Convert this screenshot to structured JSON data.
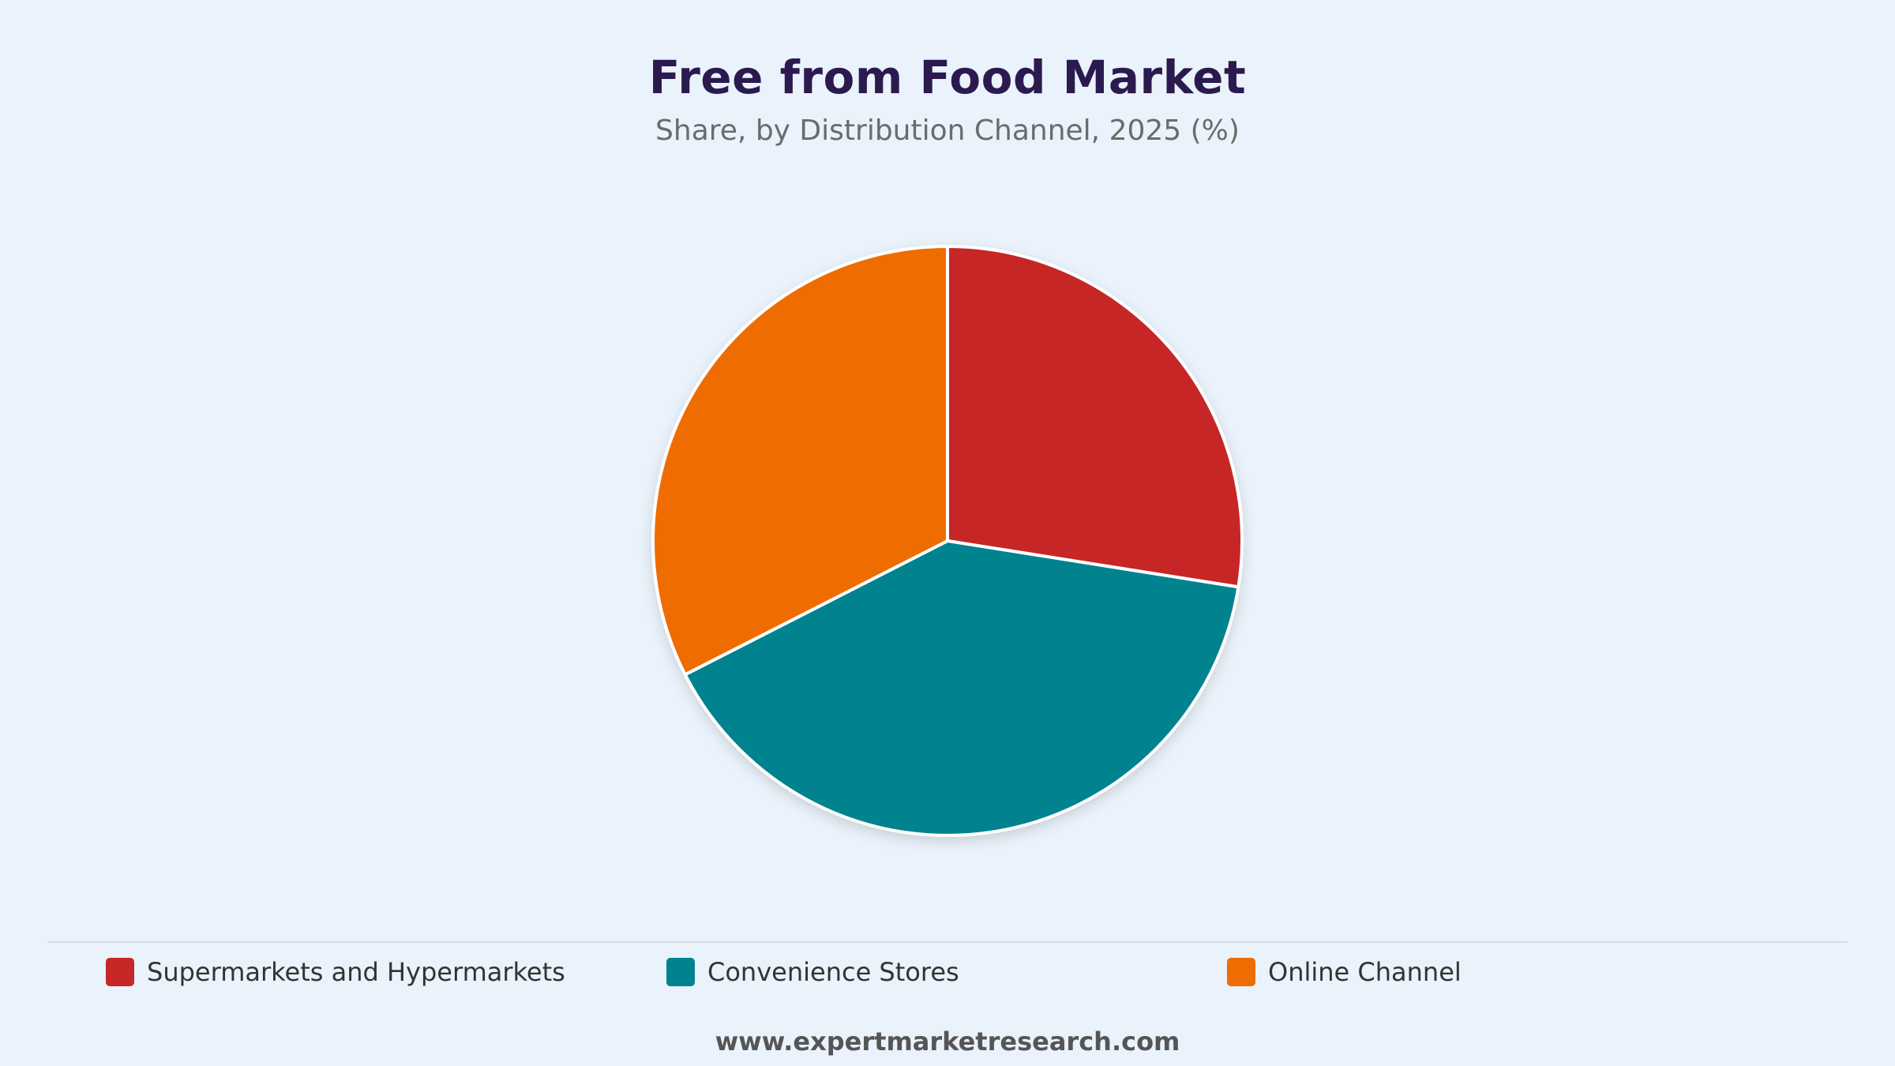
{
  "chart_data": {
    "type": "pie",
    "title": "Free from Food Market",
    "subtitle": "Share, by Distribution Channel, 2025 (%)",
    "categories": [
      "Supermarkets and Hypermarkets",
      "Convenience Stores",
      "Online Channel"
    ],
    "values": [
      27.5,
      40.0,
      32.5
    ],
    "colors": [
      "#c62828",
      "#00838f",
      "#ef6c00"
    ],
    "start_angle": "12 o'clock",
    "direction": "clockwise",
    "legend_position": "bottom"
  },
  "footer": {
    "source": "www.expertmarketresearch.com"
  }
}
